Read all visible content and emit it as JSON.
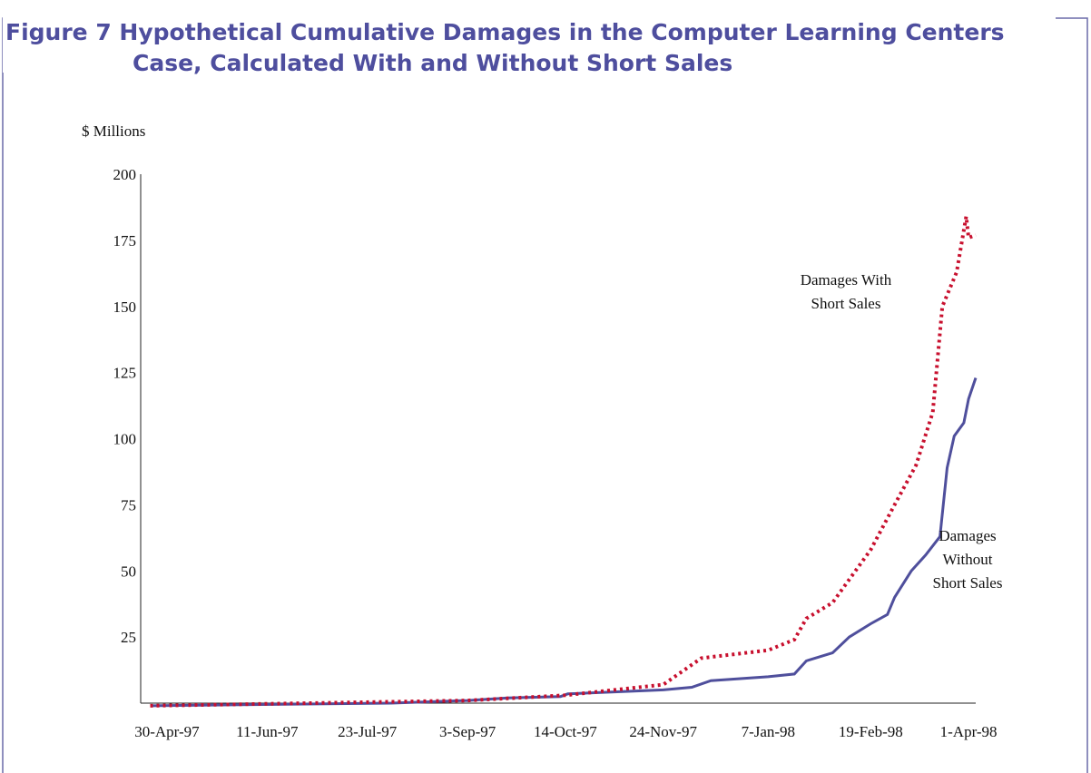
{
  "chart_data": {
    "type": "line",
    "title": [
      "Figure 7 Hypothetical Cumulative Damages in the Computer Learning Centers",
      "Case, Calculated With and Without Short Sales"
    ],
    "ylabel": "$ Millions",
    "ylim": [
      0,
      200
    ],
    "yticks": [
      25,
      50,
      75,
      100,
      125,
      150,
      175,
      200
    ],
    "xlim": [
      "1997-04-19",
      "1998-04-04"
    ],
    "xticks": [
      {
        "value": "1997-04-30",
        "label": "30-Apr-97"
      },
      {
        "value": "1997-06-11",
        "label": "11-Jun-97"
      },
      {
        "value": "1997-07-23",
        "label": "23-Jul-97"
      },
      {
        "value": "1997-09-03",
        "label": "3-Sep-97"
      },
      {
        "value": "1997-10-14",
        "label": "14-Oct-97"
      },
      {
        "value": "1997-11-24",
        "label": "24-Nov-97"
      },
      {
        "value": "1998-01-07",
        "label": "7-Jan-98"
      },
      {
        "value": "1998-02-19",
        "label": "19-Feb-98"
      },
      {
        "value": "1998-04-01",
        "label": "1-Apr-98"
      }
    ],
    "series": [
      {
        "name": [
          "Damages",
          "Without",
          "Short Sales"
        ],
        "color": "#4f4f9c",
        "dash": false,
        "x": [
          "1997-04-23",
          "1997-08-02",
          "1997-09-03",
          "1997-09-20",
          "1997-10-12",
          "1997-10-15",
          "1997-11-24",
          "1997-12-06",
          "1997-12-14",
          "1998-01-07",
          "1998-01-18",
          "1998-01-23",
          "1998-02-03",
          "1998-02-10",
          "1998-02-19",
          "1998-02-26",
          "1998-03-01",
          "1998-03-08",
          "1998-03-14",
          "1998-03-20",
          "1998-03-23",
          "1998-03-26",
          "1998-03-30",
          "1998-04-01",
          "1998-04-04"
        ],
        "values": [
          -1,
          0,
          1,
          2,
          2.5,
          3.5,
          5,
          6,
          8.5,
          10,
          11,
          16,
          19,
          25,
          30,
          33.5,
          40,
          50,
          56,
          63,
          89,
          101,
          106,
          115,
          123
        ]
      },
      {
        "name": [
          "Damages With",
          "Short Sales"
        ],
        "color": "#c8102e",
        "dash": true,
        "x": [
          "1997-04-23",
          "1997-09-03",
          "1997-10-14",
          "1997-11-24",
          "1997-12-10",
          "1998-01-07",
          "1998-01-18",
          "1998-01-23",
          "1998-02-03",
          "1998-02-19",
          "1998-03-01",
          "1998-03-10",
          "1998-03-17",
          "1998-03-21",
          "1998-03-27",
          "1998-03-31",
          "1998-04-01",
          "1998-04-04"
        ],
        "values": [
          -1,
          1,
          3,
          7,
          17,
          20,
          24,
          32,
          38,
          58,
          75,
          90,
          110,
          150,
          163,
          184,
          176,
          177
        ]
      }
    ]
  }
}
